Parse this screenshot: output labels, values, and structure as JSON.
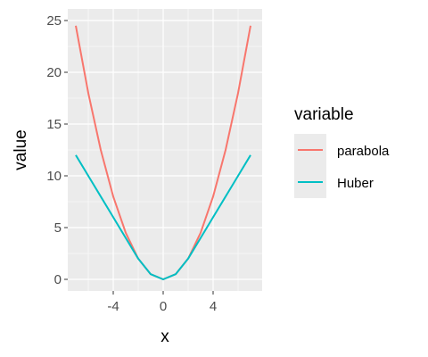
{
  "chart_data": {
    "type": "line",
    "xlabel": "x",
    "ylabel": "value",
    "xlim": [
      -7,
      7
    ],
    "ylim": [
      0,
      25
    ],
    "xticks": [
      -4,
      0,
      4
    ],
    "xtick_labels": [
      "-4",
      "0",
      "4"
    ],
    "yticks": [
      0,
      5,
      10,
      15,
      20,
      25
    ],
    "ytick_labels": [
      "0",
      "5",
      "10",
      "15",
      "20",
      "25"
    ],
    "grid": true,
    "legend_position": "right",
    "legend_title": "variable",
    "series": [
      {
        "name": "parabola",
        "color": "#F8766D",
        "x": [
          -7,
          -6,
          -5,
          -4,
          -3,
          -2,
          -1,
          0,
          1,
          2,
          3,
          4,
          5,
          6,
          7
        ],
        "y": [
          24.5,
          18,
          12.5,
          8,
          4.5,
          2,
          0.5,
          0,
          0.5,
          2,
          4.5,
          8,
          12.5,
          18,
          24.5
        ]
      },
      {
        "name": "Huber",
        "color": "#00BFC4",
        "x": [
          -7,
          -6,
          -5,
          -4,
          -3,
          -2,
          -1,
          0,
          1,
          2,
          3,
          4,
          5,
          6,
          7
        ],
        "y": [
          12,
          10,
          8,
          6,
          4,
          2,
          0.5,
          0,
          0.5,
          2,
          4,
          6,
          8,
          10,
          12
        ]
      }
    ]
  }
}
